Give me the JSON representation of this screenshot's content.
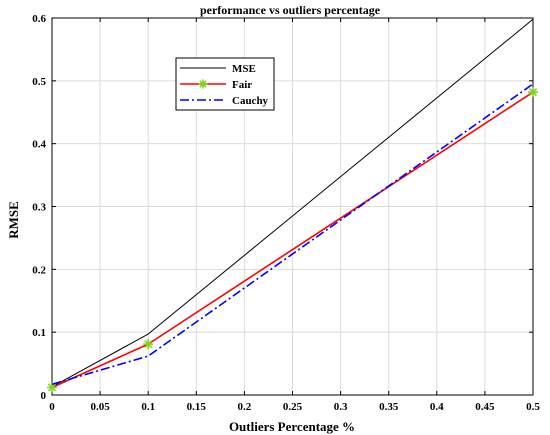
{
  "chart_data": {
    "type": "line",
    "title": "performance vs outliers percentage",
    "xlabel": "Outliers Percentage %",
    "ylabel": "RMSE",
    "xlim": [
      0,
      0.5
    ],
    "ylim": [
      0,
      0.6
    ],
    "xticks": [
      "0",
      "0.05",
      "0.1",
      "0.15",
      "0.2",
      "0.25",
      "0.3",
      "0.35",
      "0.4",
      "0.45",
      "0.5"
    ],
    "yticks": [
      "0",
      "0.1",
      "0.2",
      "0.3",
      "0.4",
      "0.5",
      "0.6"
    ],
    "grid": true,
    "legend_position": "upper-left-center",
    "series": [
      {
        "name": "MSE",
        "color": "#000000",
        "style": "solid",
        "marker": "none",
        "x": [
          0,
          0.1,
          0.5
        ],
        "y": [
          0.013,
          0.097,
          0.598
        ]
      },
      {
        "name": "Fair",
        "color": "#ff0000",
        "style": "solid",
        "marker": "asterisk",
        "marker_color": "#7fd41b",
        "x": [
          0,
          0.1,
          0.5
        ],
        "y": [
          0.012,
          0.081,
          0.482
        ]
      },
      {
        "name": "Cauchy",
        "color": "#0000ff",
        "style": "dashdot",
        "marker": "none",
        "x": [
          0,
          0.1,
          0.5
        ],
        "y": [
          0.017,
          0.062,
          0.495
        ]
      }
    ]
  }
}
